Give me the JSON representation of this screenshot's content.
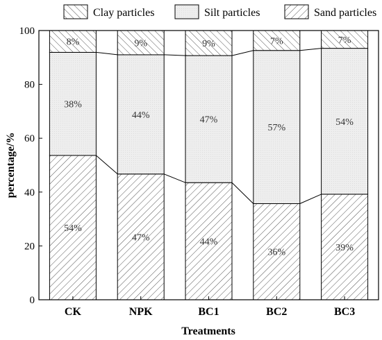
{
  "chart_data": {
    "type": "bar",
    "stacked": true,
    "title": "",
    "xlabel": "Treatments",
    "ylabel": "percentage/%",
    "ylim": [
      0,
      100
    ],
    "yticks": [
      "0",
      "20",
      "40",
      "60",
      "80",
      "100"
    ],
    "categories": [
      "CK",
      "NPK",
      "BC1",
      "BC2",
      "BC3"
    ],
    "legend_position": "top",
    "grid": false,
    "series": [
      {
        "name": "Sand particles",
        "values": [
          53.6,
          46.7,
          43.5,
          35.7,
          39.2
        ],
        "labels": [
          "54%",
          "47%",
          "44%",
          "36%",
          "39%"
        ],
        "pattern": "diagonal-hatch"
      },
      {
        "name": "Silt particles",
        "values": [
          38.3,
          44.3,
          47.2,
          56.9,
          54.2
        ],
        "labels": [
          "38%",
          "44%",
          "47%",
          "57%",
          "54%"
        ],
        "pattern": "light-gray"
      },
      {
        "name": "Clay particles",
        "values": [
          8.1,
          9.0,
          9.3,
          7.4,
          6.6
        ],
        "labels": [
          "8%",
          "9%",
          "9%",
          "7%",
          "7%"
        ],
        "pattern": "reverse-hatch"
      }
    ],
    "legend_order": [
      "Clay particles",
      "Silt particles",
      "Sand particles"
    ]
  }
}
